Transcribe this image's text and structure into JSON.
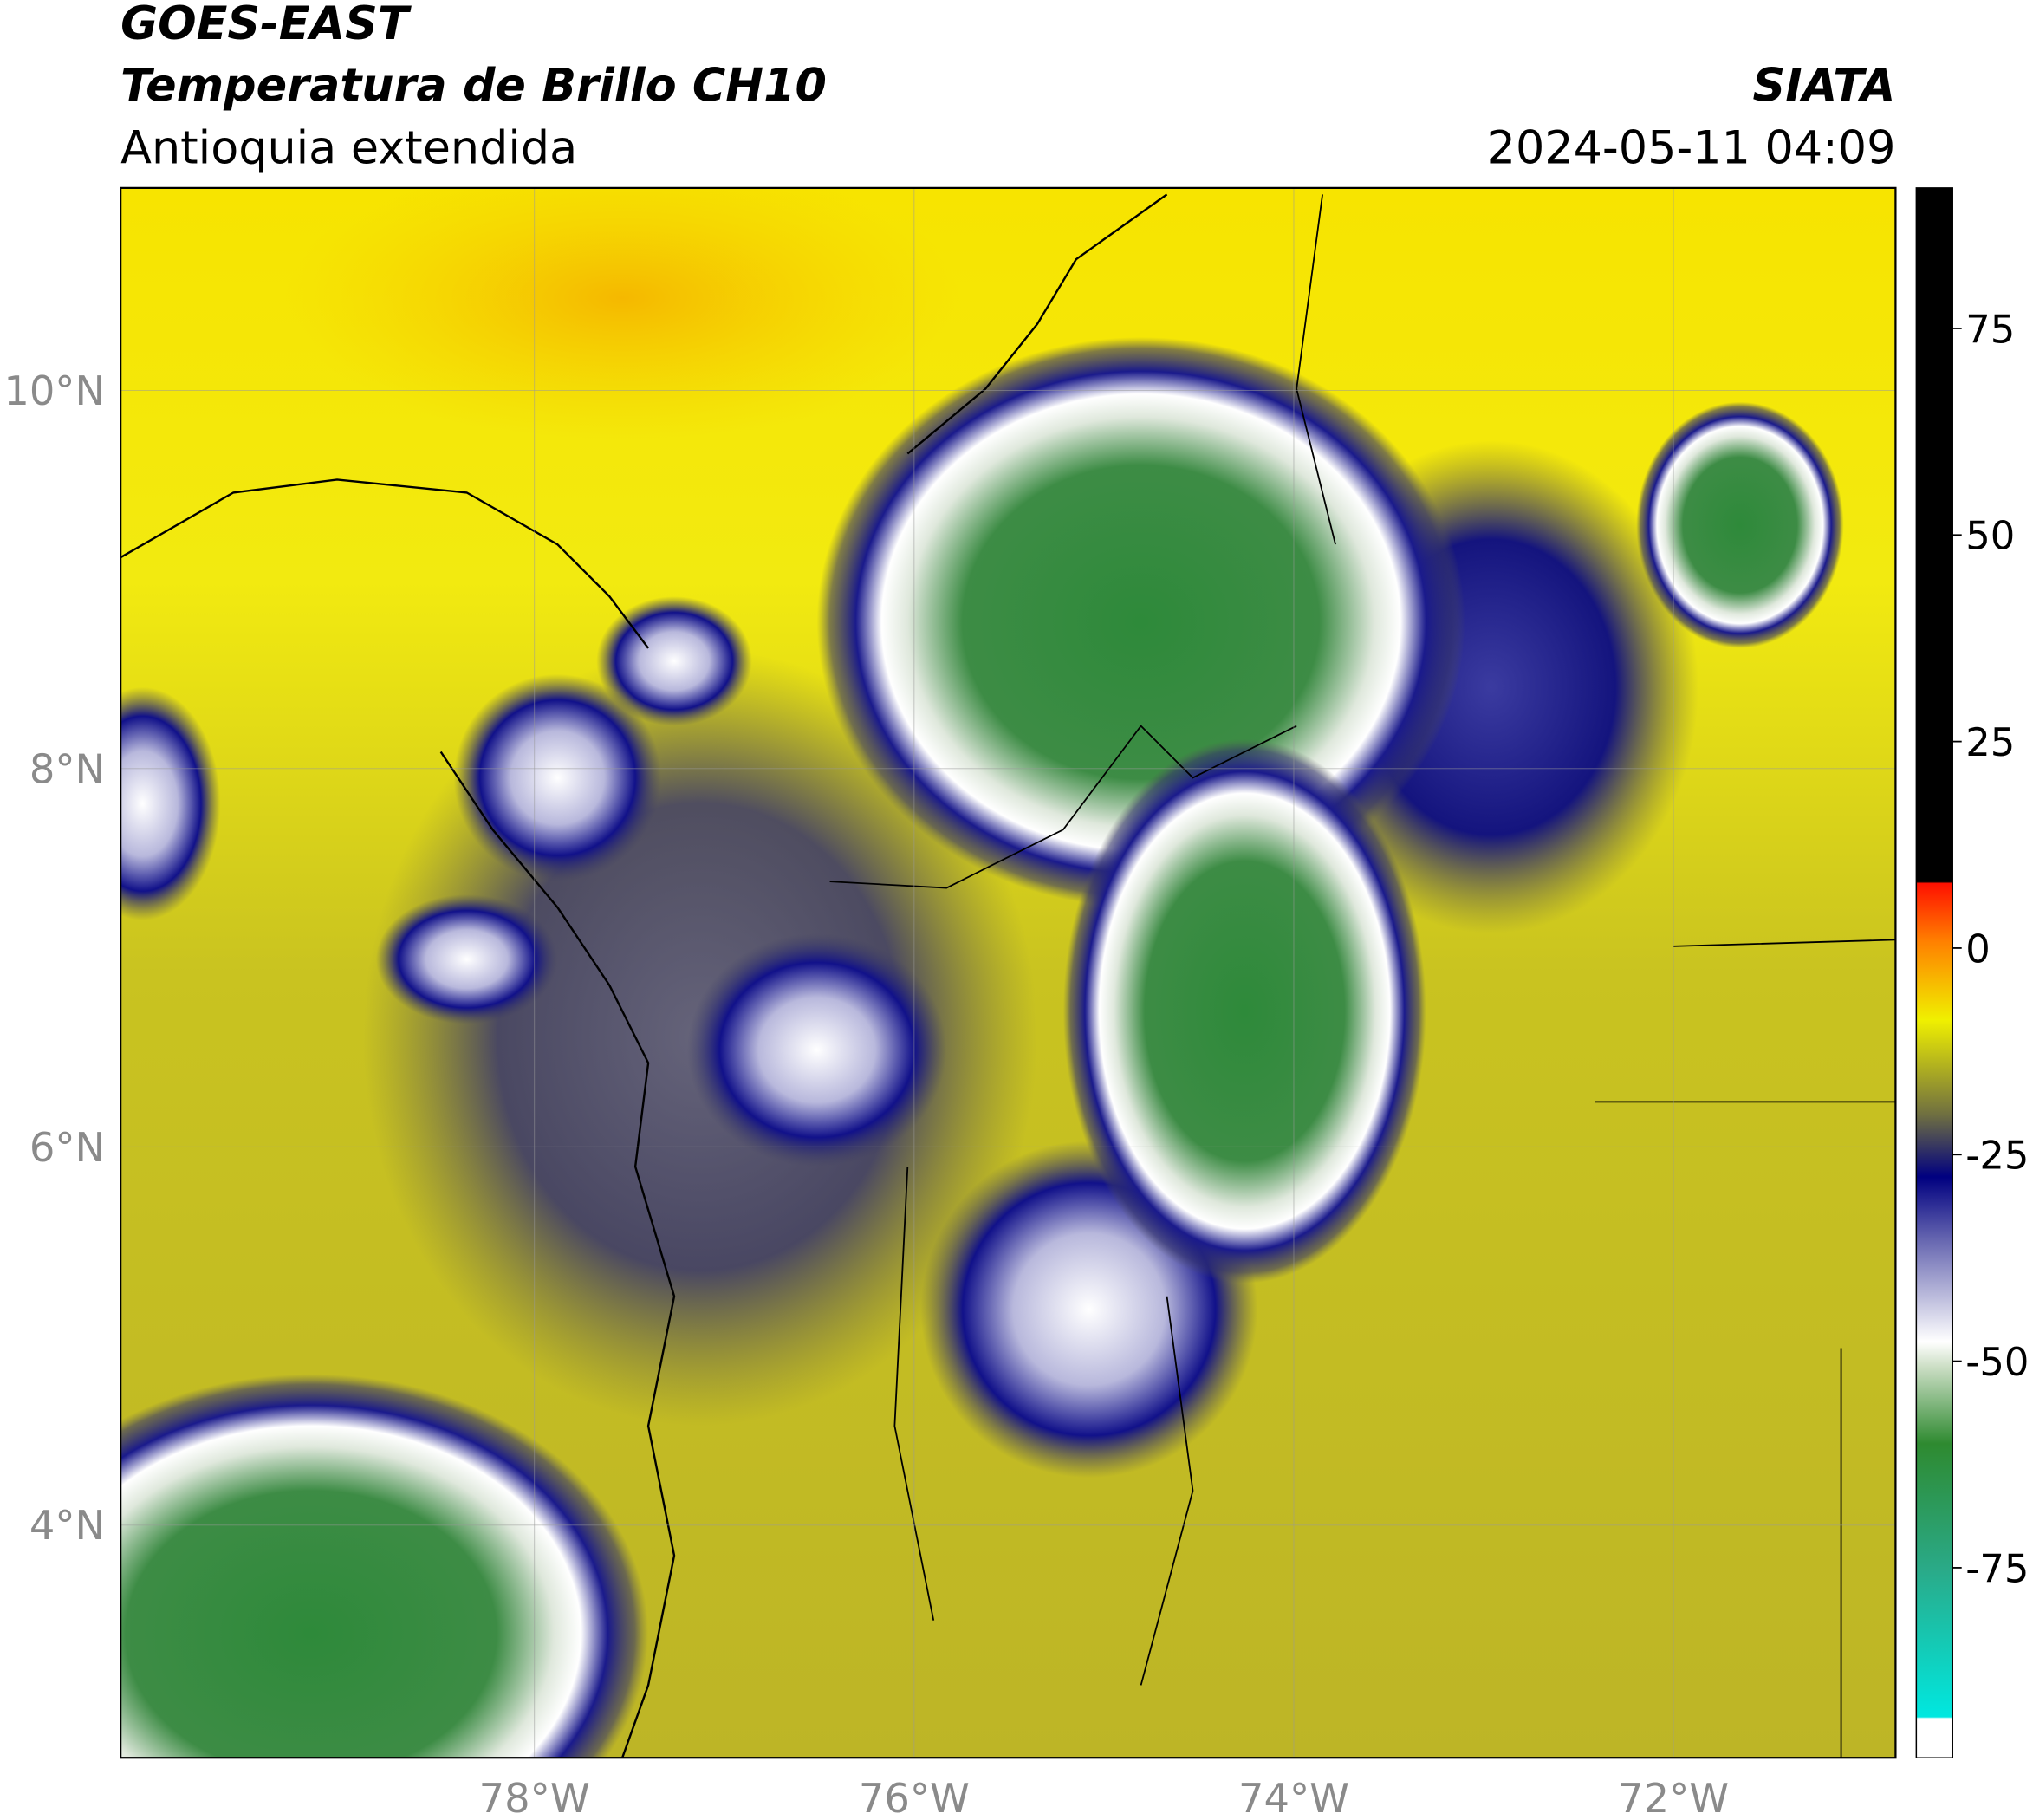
{
  "header": {
    "title_line1": "GOES-EAST",
    "title_line2": "Temperatura de Brillo CH10",
    "subtitle": "Antioquia extendida",
    "source": "SIATA",
    "timestamp": "2024-05-11 04:09"
  },
  "chart_data": {
    "type": "map",
    "xlim": [
      -80.18,
      -70.83
    ],
    "ylim": [
      2.77,
      11.07
    ],
    "xticks": [
      {
        "value": -78,
        "label": "78°W"
      },
      {
        "value": -76,
        "label": "76°W"
      },
      {
        "value": -74,
        "label": "74°W"
      },
      {
        "value": -72,
        "label": "72°W"
      }
    ],
    "yticks": [
      {
        "value": 4,
        "label": "4°N"
      },
      {
        "value": 6,
        "label": "6°N"
      },
      {
        "value": 8,
        "label": "8°N"
      },
      {
        "value": 10,
        "label": "10°N"
      }
    ],
    "grid": true,
    "colorbar": {
      "lim": [
        -98,
        92
      ],
      "ticks": [
        -75,
        -50,
        -25,
        0,
        25,
        50,
        75
      ]
    }
  }
}
